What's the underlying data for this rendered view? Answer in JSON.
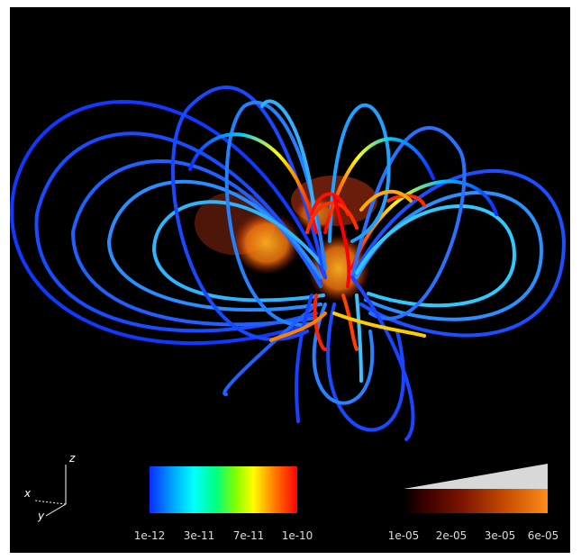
{
  "image": {
    "description_icons": [
      "coordinate-axes-icon"
    ],
    "axes": {
      "z": "z",
      "x": "x",
      "y": "y"
    },
    "line_colorbar": {
      "ticks": [
        "1e-12",
        "3e-11",
        "7e-11",
        "1e-10"
      ]
    },
    "volume_colorbar": {
      "ticks": [
        "1e-05",
        "2e-05",
        "3e-05",
        "6e-05"
      ]
    },
    "colors": {
      "background": "#000000",
      "field_line_low": "#0a2cff",
      "field_line_high": "#ff0000",
      "volume": "#ff9a1a"
    }
  }
}
